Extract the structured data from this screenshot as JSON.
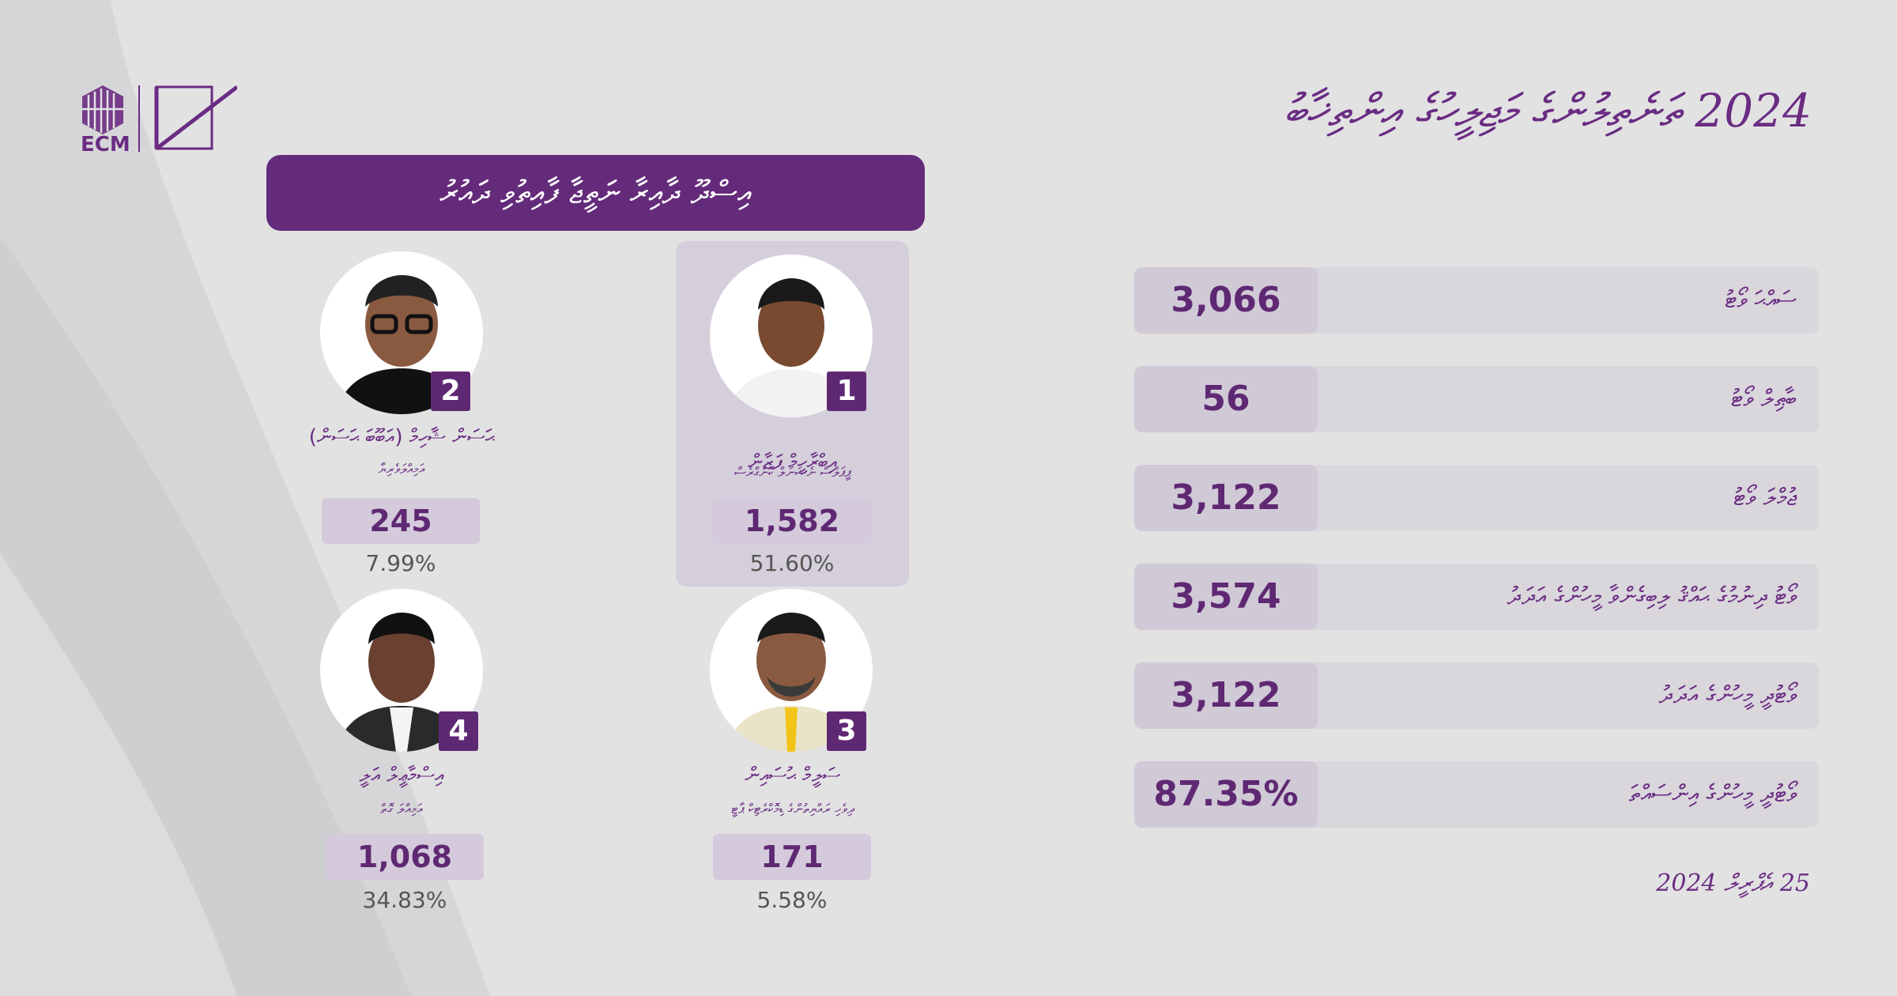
{
  "header": {
    "logo_text": "ECM",
    "title": "2024 ތަނެތިލުންގެ މަޖިލީހުގެ އިންތިޚާބު"
  },
  "banner": {
    "text": "އިސްދޫ ދާއިރާ ނަތީޖާ ފާއިތުވި ދައުރު"
  },
  "candidates": [
    {
      "number": "1",
      "name": "އިބްރާހީމް ފަޒާން",
      "subtitle": "ޕީޕަލްސް ނެޝަނަލް ކޮންގްރެސް",
      "votes": "1,582",
      "percent": "51.60%"
    },
    {
      "number": "2",
      "name": "ޙަސަން ޝާހިމް (އަބޫބަ ޙަސަން)",
      "subtitle": "އަމިއްލަވެރިޔާ",
      "votes": "245",
      "percent": "7.99%"
    },
    {
      "number": "3",
      "name": "ސަލީމް ޙުސައިން",
      "subtitle": "ދިވެހި ރައްޔިތުންގެ ޑިމޮކްރެޓިކް ޕާޓީ",
      "votes": "171",
      "percent": "5.58%"
    },
    {
      "number": "4",
      "name": "އިސްމާޢީލް އަލީ",
      "subtitle": "އަމިއްލަ ގޮތް",
      "votes": "1,068",
      "percent": "34.83%"
    }
  ],
  "stats": [
    {
      "label": "ސައްޙަ ވޯޓު",
      "value": "3,066"
    },
    {
      "label": "ބާޠިލް ވޯޓު",
      "value": "56"
    },
    {
      "label": "ޖުމްލަ ވޯޓު",
      "value": "3,122"
    },
    {
      "label": "ވޯޓު ދިނުމުގެ ޙައްޤު ލިބިގެންވާ މީހުންގެ އަދަދު",
      "value": "3,574"
    },
    {
      "label": "ވޯޓުދީ މީހުންގެ އަދަދު",
      "value": "3,122"
    },
    {
      "label": "ވޯޓުދީ މީހުންގެ އިންސައްތަ",
      "value": "87.35%"
    }
  ],
  "date": "25 އެޕްރީލް 2024"
}
